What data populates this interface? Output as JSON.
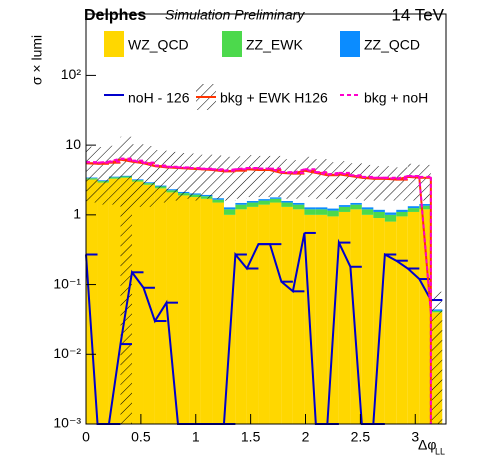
{
  "chart_data": {
    "type": "histogram",
    "title": "Delphes",
    "subtitle": "Simulation Preliminary",
    "energy": "14 TeV",
    "y_label": "σ × lumi",
    "x_label": "Δφ",
    "x_label_sub": "LL",
    "log_y": true,
    "bins": [
      0,
      0.105,
      0.209,
      0.314,
      0.419,
      0.524,
      0.628,
      0.733,
      0.838,
      0.942,
      1.047,
      1.152,
      1.257,
      1.361,
      1.466,
      1.571,
      1.676,
      1.78,
      1.885,
      1.99,
      2.094,
      2.199,
      2.304,
      2.409,
      2.513,
      2.618,
      2.723,
      2.827,
      2.932,
      3.037,
      3.142,
      3.246
    ],
    "xlim": [
      0,
      3.28
    ],
    "xticks": [
      0,
      0.5,
      1,
      1.5,
      2,
      2.5,
      3
    ],
    "ylim": [
      0.001,
      760
    ],
    "yticks": [
      {
        "value": 0.001,
        "label": "10⁻³"
      },
      {
        "value": 0.01,
        "label": "10⁻²"
      },
      {
        "value": 0.1,
        "label": "10⁻¹"
      },
      1,
      10,
      {
        "value": 100,
        "label": "10²"
      }
    ],
    "series": [
      {
        "name": "WZ_QCD",
        "color": "#ffd700",
        "style": "stack",
        "values": [
          3.2,
          2.9,
          3.3,
          3.4,
          3.0,
          2.7,
          2.4,
          2.1,
          1.9,
          1.8,
          1.7,
          1.5,
          1.0,
          1.2,
          1.3,
          1.4,
          1.5,
          1.3,
          1.2,
          1.0,
          1.0,
          0.95,
          1.1,
          1.2,
          1.0,
          0.9,
          0.8,
          0.95,
          1.1,
          1.2,
          0.04
        ]
      },
      {
        "name": "ZZ_EWK",
        "color": "#4cd94c",
        "style": "stack",
        "values": [
          0.15,
          0.15,
          0.15,
          0.15,
          0.15,
          0.15,
          0.15,
          0.15,
          0.15,
          0.15,
          0.15,
          0.15,
          0.2,
          0.2,
          0.2,
          0.2,
          0.2,
          0.2,
          0.2,
          0.2,
          0.2,
          0.2,
          0.2,
          0.2,
          0.2,
          0.2,
          0.2,
          0.15,
          0.15,
          0.15,
          0.002
        ]
      },
      {
        "name": "ZZ_QCD",
        "color": "#0b8cff",
        "style": "stack",
        "values": [
          0.08,
          0.08,
          0.08,
          0.08,
          0.08,
          0.08,
          0.08,
          0.08,
          0.08,
          0.08,
          0.08,
          0.08,
          0.08,
          0.08,
          0.08,
          0.08,
          0.08,
          0.08,
          0.08,
          0.08,
          0.08,
          0.08,
          0.08,
          0.08,
          0.08,
          0.08,
          0.08,
          0.08,
          0.08,
          0.08,
          0.002
        ]
      },
      {
        "name": "noH - 126",
        "color": "#0000cc",
        "style": "line",
        "values": [
          0.27,
          0.001,
          0.001,
          0.014,
          0.15,
          0.09,
          0.03,
          0.055,
          0.001,
          0.001,
          0.001,
          0.001,
          0.001,
          0.27,
          0.17,
          0.38,
          0.38,
          0.11,
          0.08,
          0.55,
          0.001,
          0.001,
          0.4,
          0.18,
          0.001,
          0.001,
          0.27,
          0.22,
          0.17,
          0.12,
          0.06
        ]
      },
      {
        "name": "bkg + EWK H126",
        "color": "#ff3300",
        "style": "band",
        "values": [
          5.5,
          5.4,
          5.6,
          6.2,
          5.8,
          5.5,
          5.0,
          4.8,
          4.7,
          4.6,
          4.5,
          4.4,
          4.2,
          4.3,
          4.5,
          4.4,
          4.4,
          4.0,
          3.9,
          4.3,
          4.0,
          3.7,
          3.8,
          3.6,
          3.4,
          3.3,
          3.3,
          3.2,
          3.5,
          3.4,
          0.04
        ],
        "errors": [
          4.0,
          4.0,
          4.2,
          7.0,
          4.5,
          4.2,
          3.5,
          3.2,
          3.0,
          3.0,
          2.8,
          2.7,
          2.6,
          2.6,
          2.7,
          2.6,
          2.6,
          2.3,
          2.2,
          2.5,
          2.3,
          2.0,
          2.1,
          1.9,
          1.8,
          1.7,
          1.7,
          1.6,
          1.9,
          1.8,
          0.039
        ]
      },
      {
        "name": "bkg + noH",
        "color": "#ff00cc",
        "style": "dashed",
        "values": [
          5.7,
          5.6,
          5.8,
          6.4,
          6.0,
          5.6,
          5.1,
          4.9,
          4.8,
          4.7,
          4.6,
          4.5,
          4.3,
          4.5,
          4.7,
          4.6,
          4.6,
          4.1,
          4.0,
          4.5,
          4.1,
          3.8,
          4.0,
          3.7,
          3.5,
          3.4,
          3.4,
          3.3,
          3.6,
          3.5,
          0.04
        ]
      }
    ]
  }
}
